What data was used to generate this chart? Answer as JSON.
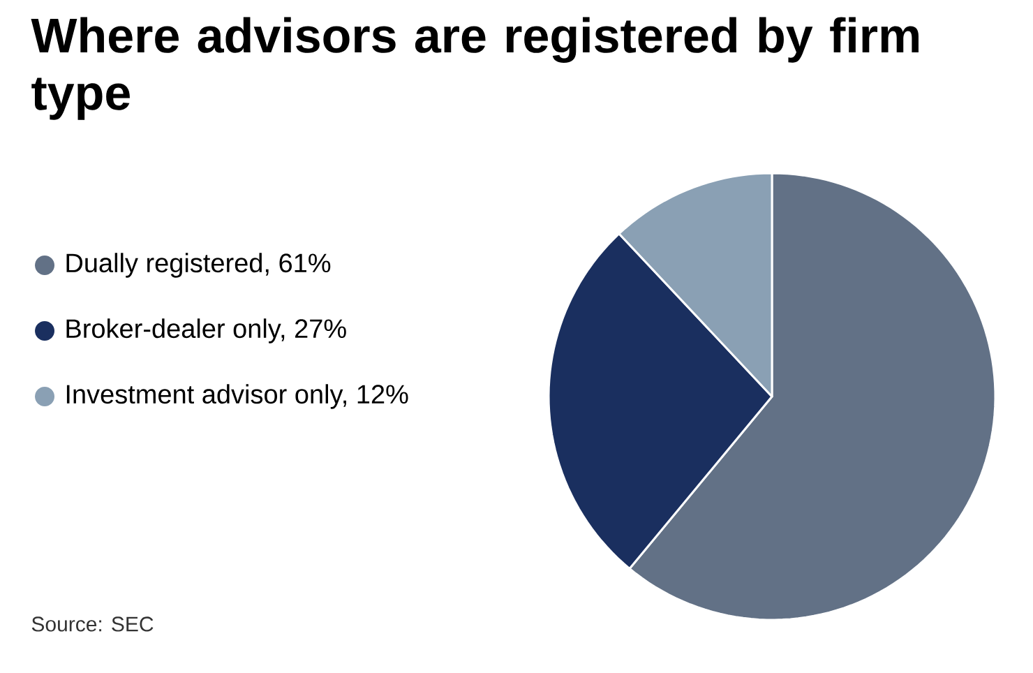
{
  "chart_data": {
    "type": "pie",
    "title": "Where advisors are registered by firm type",
    "categories": [
      "Dually registered, 61%",
      "Broker-dealer only, 27%",
      "Investment advisor only, 12%"
    ],
    "values": [
      61,
      27,
      12
    ],
    "colors": [
      "#627186",
      "#1a2f5f",
      "#8aa0b4"
    ],
    "legend": "left",
    "annotations": [
      "Source: SEC"
    ]
  }
}
